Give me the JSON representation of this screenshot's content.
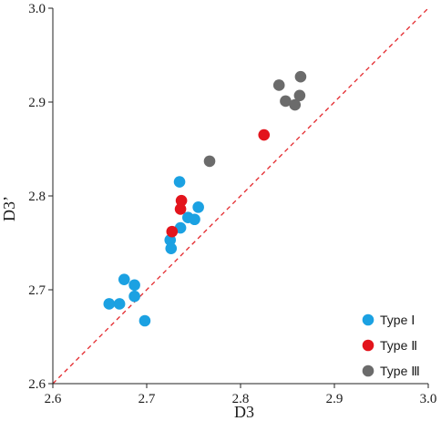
{
  "chart_data": {
    "type": "scatter",
    "xlabel": "D3",
    "ylabel": "D3’",
    "xlim": [
      2.6,
      3.0
    ],
    "ylim": [
      2.6,
      3.0
    ],
    "x_ticks": [
      "2.6",
      "2.7",
      "2.8",
      "2.9",
      "3.0"
    ],
    "y_ticks": [
      "2.6",
      "2.7",
      "2.8",
      "2.9",
      "3.0"
    ],
    "grid": false,
    "legend_position": "bottom-right",
    "reference_line": {
      "type": "y=x",
      "style": "dashed",
      "color": "#e3262b"
    },
    "series": [
      {
        "name": "Type Ⅰ",
        "color": "#1ba1e2",
        "points": [
          [
            2.66,
            2.685
          ],
          [
            2.671,
            2.685
          ],
          [
            2.676,
            2.711
          ],
          [
            2.687,
            2.705
          ],
          [
            2.687,
            2.693
          ],
          [
            2.698,
            2.667
          ],
          [
            2.725,
            2.753
          ],
          [
            2.726,
            2.744
          ],
          [
            2.736,
            2.766
          ],
          [
            2.735,
            2.815
          ],
          [
            2.744,
            2.777
          ],
          [
            2.751,
            2.775
          ],
          [
            2.755,
            2.788
          ]
        ]
      },
      {
        "name": "Type Ⅱ",
        "color": "#e3141c",
        "points": [
          [
            2.727,
            2.762
          ],
          [
            2.736,
            2.786
          ],
          [
            2.737,
            2.795
          ],
          [
            2.825,
            2.865
          ]
        ]
      },
      {
        "name": "Type Ⅲ",
        "color": "#6b6b6b",
        "points": [
          [
            2.767,
            2.837
          ],
          [
            2.841,
            2.918
          ],
          [
            2.848,
            2.901
          ],
          [
            2.858,
            2.897
          ],
          [
            2.863,
            2.907
          ],
          [
            2.864,
            2.927
          ]
        ]
      }
    ]
  }
}
